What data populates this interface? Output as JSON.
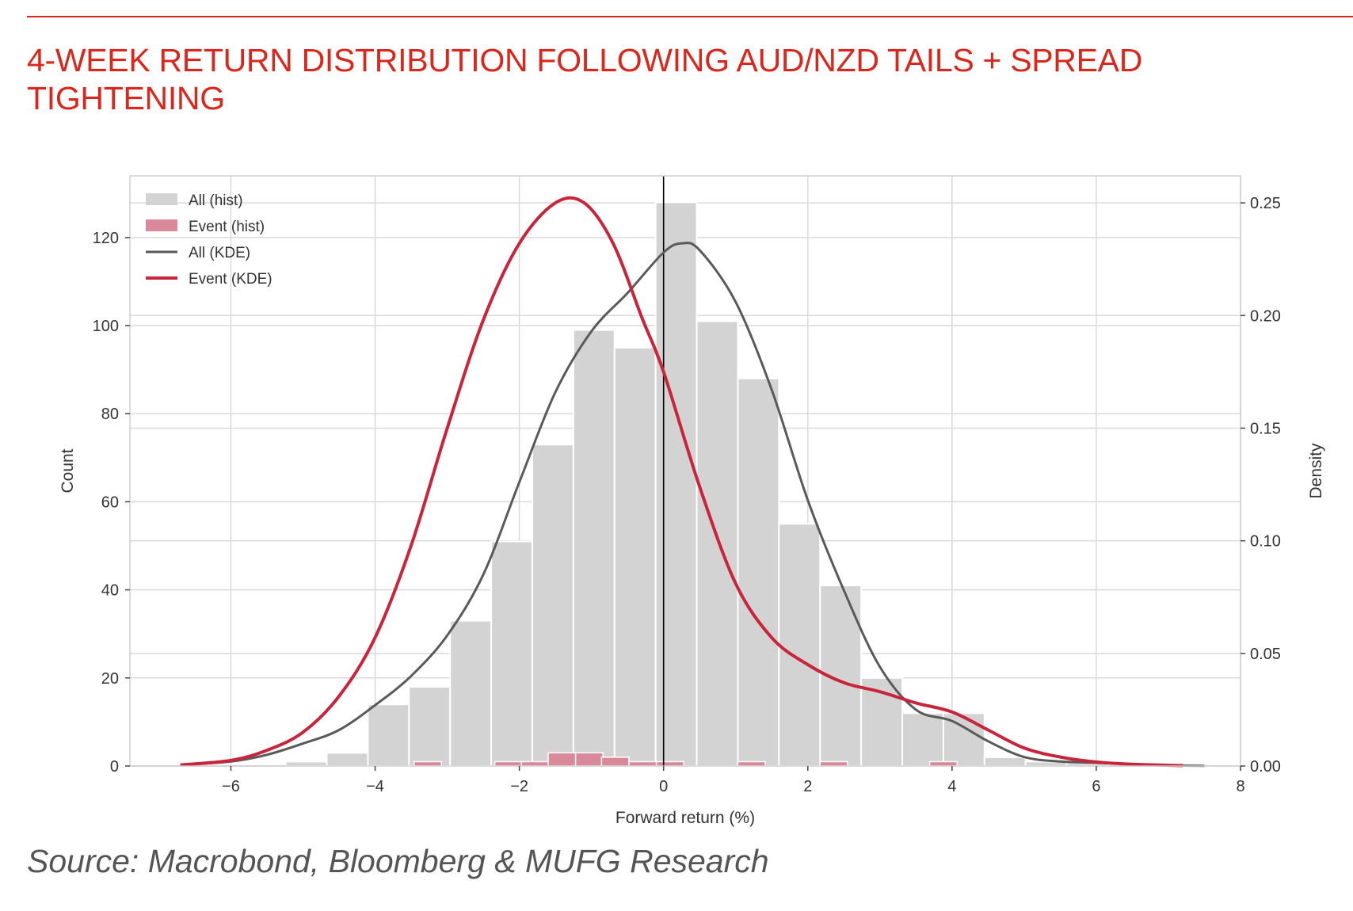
{
  "title": "4-WEEK RETURN DISTRIBUTION FOLLOWING AUD/NZD TAILS + SPREAD TIGHTENING",
  "source": "Source: Macrobond, Bloomberg & MUFG Research",
  "colors": {
    "accent": "#d9271e",
    "all_hist": "#d3d3d3",
    "event_hist": "#d9899a",
    "all_kde": "#5a5a5a",
    "event_kde": "#c8243c",
    "grid": "#d9d9d9"
  },
  "chart_data": {
    "type": "bar",
    "xlabel": "Forward return (%)",
    "ylabel": "Count",
    "y2label": "Density",
    "xlim": [
      -7.4,
      8.0
    ],
    "ylim": [
      0,
      134
    ],
    "y2lim": [
      0,
      0.262
    ],
    "x_ticks": [
      -6,
      -4,
      -2,
      0,
      2,
      4,
      6,
      8
    ],
    "x_tick_labels": [
      "−6",
      "−4",
      "−2",
      "0",
      "2",
      "4",
      "6",
      "8"
    ],
    "y_ticks": [
      0,
      20,
      40,
      60,
      80,
      100,
      120
    ],
    "y2_ticks": [
      0.0,
      0.05,
      0.1,
      0.15,
      0.2,
      0.25
    ],
    "y2_tick_labels": [
      "0.00",
      "0.05",
      "0.10",
      "0.15",
      "0.20",
      "0.25"
    ],
    "vline_x": 0,
    "grid": true,
    "legend_position": "top-left",
    "legend": [
      "All (hist)",
      "Event (hist)",
      "All (KDE)",
      "Event (KDE)"
    ],
    "all_hist": {
      "name": "All (hist)",
      "bin_width": 0.57,
      "bin_left_edges": [
        -5.24,
        -4.67,
        -4.1,
        -3.53,
        -2.96,
        -2.39,
        -1.82,
        -1.25,
        -0.68,
        -0.11,
        0.46,
        1.03,
        1.6,
        2.17,
        2.74,
        3.31,
        3.88,
        4.45,
        5.02,
        5.59
      ],
      "counts": [
        1,
        3,
        14,
        18,
        33,
        51,
        73,
        99,
        95,
        128,
        101,
        88,
        55,
        41,
        20,
        12,
        12,
        2,
        1,
        1
      ]
    },
    "event_hist": {
      "name": "Event (hist)",
      "bin_width": 0.38,
      "bins": [
        {
          "x": -3.46,
          "count": 1
        },
        {
          "x": -2.34,
          "count": 1
        },
        {
          "x": -1.97,
          "count": 1
        },
        {
          "x": -1.6,
          "count": 3
        },
        {
          "x": -1.22,
          "count": 3
        },
        {
          "x": -0.86,
          "count": 2
        },
        {
          "x": -0.48,
          "count": 1
        },
        {
          "x": -0.1,
          "count": 1
        },
        {
          "x": 1.03,
          "count": 1
        },
        {
          "x": 2.17,
          "count": 1
        },
        {
          "x": 3.69,
          "count": 1
        }
      ]
    },
    "all_kde": {
      "name": "All (KDE)",
      "x": [
        -6.7,
        -6.0,
        -5.5,
        -5.0,
        -4.5,
        -4.0,
        -3.5,
        -3.0,
        -2.5,
        -2.0,
        -1.5,
        -1.0,
        -0.5,
        0.0,
        0.25,
        0.5,
        1.0,
        1.5,
        2.0,
        2.5,
        3.0,
        3.5,
        4.0,
        4.5,
        5.0,
        5.5,
        6.0,
        6.5,
        7.0,
        7.5
      ],
      "density": [
        0.0005,
        0.002,
        0.005,
        0.01,
        0.016,
        0.027,
        0.04,
        0.058,
        0.085,
        0.126,
        0.166,
        0.193,
        0.21,
        0.228,
        0.232,
        0.229,
        0.206,
        0.167,
        0.118,
        0.078,
        0.044,
        0.025,
        0.02,
        0.011,
        0.004,
        0.002,
        0.0015,
        0.0008,
        0.0003,
        0.0001
      ]
    },
    "event_kde": {
      "name": "Event (KDE)",
      "x": [
        -6.7,
        -6.0,
        -5.5,
        -5.0,
        -4.5,
        -4.0,
        -3.5,
        -3.0,
        -2.5,
        -2.0,
        -1.5,
        -1.1,
        -0.7,
        -0.3,
        0.0,
        0.5,
        1.0,
        1.5,
        2.0,
        2.5,
        3.0,
        3.5,
        4.0,
        4.5,
        5.0,
        5.5,
        6.0,
        6.5,
        7.2
      ],
      "density": [
        0.0005,
        0.0025,
        0.007,
        0.015,
        0.031,
        0.057,
        0.098,
        0.15,
        0.198,
        0.232,
        0.25,
        0.25,
        0.232,
        0.199,
        0.175,
        0.124,
        0.081,
        0.057,
        0.045,
        0.037,
        0.033,
        0.028,
        0.024,
        0.016,
        0.008,
        0.004,
        0.0018,
        0.0008,
        0.0002
      ]
    }
  }
}
